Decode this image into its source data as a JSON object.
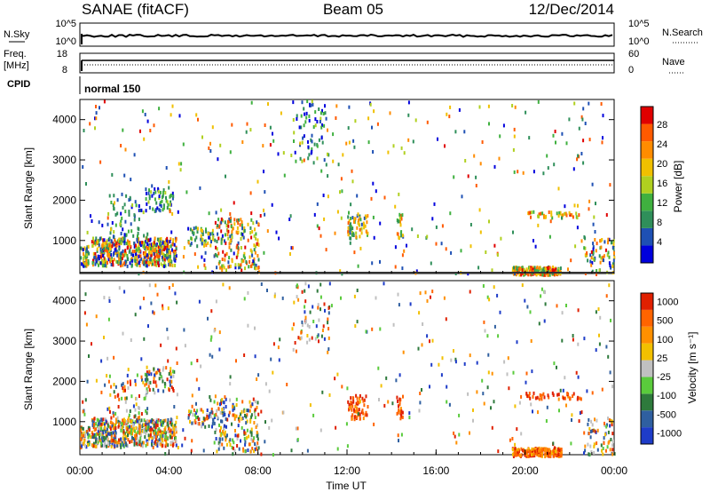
{
  "header": {
    "station": "SANAE (fitACF)",
    "beam": "Beam 05",
    "date": "12/Dec/2014"
  },
  "top_panels": {
    "nsky_label": "N.Sky",
    "nsky_ticks": [
      "10^5",
      "10^0"
    ],
    "nsearch_label": "N.Search",
    "nsearch_ticks": [
      "10^5",
      "10^0"
    ],
    "freq_label": "Freq.",
    "freq_unit": "[MHz]",
    "freq_ticks": [
      "18",
      "8"
    ],
    "nave_label": "Nave",
    "nave_ticks": [
      "60",
      "0"
    ],
    "cpid_label": "CPID",
    "cpid_value": "normal 150"
  },
  "colors": {
    "power_scale": [
      "#0000dd",
      "#1e50b4",
      "#2f8f5a",
      "#3fb03f",
      "#b0d020",
      "#f0c000",
      "#ff8c00",
      "#ff5a00",
      "#e00000"
    ],
    "velocity_scale": [
      "#1e3cc8",
      "#2f5fa0",
      "#2e7a3c",
      "#5acb3c",
      "#c0c0c0",
      "#f2c000",
      "#ff9000",
      "#ff6400",
      "#e02000"
    ]
  },
  "chart_data": [
    {
      "type": "heatmap",
      "name": "power",
      "ylabel": "Slant Range [km]",
      "xlabel": "",
      "colorbar_label": "Power [dB]",
      "colorbar_ticks": [
        "28",
        "24",
        "20",
        "16",
        "12",
        "8",
        "4"
      ],
      "colorbar_range": [
        0,
        32
      ],
      "ylim": [
        180,
        4500
      ],
      "yticks": [
        "4000",
        "3000",
        "2000",
        "1000"
      ],
      "xlim_hours": [
        0,
        24
      ],
      "clusters": [
        {
          "t0": 0.0,
          "t1": 0.4,
          "r0": 400,
          "r1": 900,
          "n": 40,
          "v0": 6,
          "v1": 24
        },
        {
          "t0": 0.5,
          "t1": 4.3,
          "r0": 400,
          "r1": 1100,
          "n": 520,
          "v0": 4,
          "v1": 30
        },
        {
          "t0": 1.2,
          "t1": 3.0,
          "r0": 1000,
          "r1": 2200,
          "n": 70,
          "v0": 4,
          "v1": 16
        },
        {
          "t0": 2.9,
          "t1": 4.2,
          "r0": 1750,
          "r1": 2400,
          "n": 60,
          "v0": 4,
          "v1": 18
        },
        {
          "t0": 4.8,
          "t1": 6.0,
          "r0": 900,
          "r1": 1350,
          "n": 50,
          "v0": 6,
          "v1": 22
        },
        {
          "t0": 6.0,
          "t1": 8.0,
          "r0": 300,
          "r1": 1600,
          "n": 170,
          "v0": 6,
          "v1": 30
        },
        {
          "t0": 12.0,
          "t1": 12.9,
          "r0": 1100,
          "r1": 1700,
          "n": 60,
          "v0": 8,
          "v1": 26
        },
        {
          "t0": 14.2,
          "t1": 14.5,
          "r0": 1100,
          "r1": 1700,
          "n": 20,
          "v0": 8,
          "v1": 26
        },
        {
          "t0": 19.4,
          "t1": 21.6,
          "r0": 180,
          "r1": 380,
          "n": 200,
          "v0": 10,
          "v1": 30
        },
        {
          "t0": 20.0,
          "t1": 22.5,
          "r0": 1600,
          "r1": 1750,
          "n": 40,
          "v0": 14,
          "v1": 28
        },
        {
          "t0": 22.6,
          "t1": 24.0,
          "r0": 200,
          "r1": 1100,
          "n": 60,
          "v0": 6,
          "v1": 26
        },
        {
          "t0": 9.5,
          "t1": 11.2,
          "r0": 3000,
          "r1": 4500,
          "n": 60,
          "v0": 4,
          "v1": 18
        },
        {
          "t0": 0.0,
          "t1": 24.0,
          "r0": 200,
          "r1": 4500,
          "n": 380,
          "v0": 4,
          "v1": 28
        }
      ]
    },
    {
      "type": "heatmap",
      "name": "velocity",
      "ylabel": "Slant Range [km]",
      "xlabel": "Time UT",
      "colorbar_label": "Velocity [m s⁻¹]",
      "colorbar_ticks": [
        "1000",
        "500",
        "100",
        "25",
        "-25",
        "-100",
        "-500",
        "-1000"
      ],
      "ylim": [
        180,
        4500
      ],
      "yticks": [
        "4000",
        "3000",
        "2000",
        "1000"
      ],
      "xticks": [
        "00:00",
        "04:00",
        "08:00",
        "12:00",
        "16:00",
        "20:00",
        "00:00"
      ],
      "xlim_hours": [
        0,
        24
      ],
      "clusters": [
        {
          "t0": 0.0,
          "t1": 0.4,
          "r0": 400,
          "r1": 900,
          "n": 40,
          "v0": 0,
          "v1": 8
        },
        {
          "t0": 0.5,
          "t1": 4.3,
          "r0": 400,
          "r1": 1100,
          "n": 520,
          "v0": 0,
          "v1": 8
        },
        {
          "t0": 1.2,
          "t1": 3.0,
          "r0": 1000,
          "r1": 2200,
          "n": 70,
          "v0": 0,
          "v1": 8
        },
        {
          "t0": 2.9,
          "t1": 4.2,
          "r0": 1750,
          "r1": 2400,
          "n": 60,
          "v0": 0,
          "v1": 8
        },
        {
          "t0": 4.8,
          "t1": 6.0,
          "r0": 900,
          "r1": 1350,
          "n": 50,
          "v0": 0,
          "v1": 8
        },
        {
          "t0": 6.0,
          "t1": 8.0,
          "r0": 300,
          "r1": 1600,
          "n": 170,
          "v0": 0,
          "v1": 8
        },
        {
          "t0": 12.0,
          "t1": 12.9,
          "r0": 1100,
          "r1": 1700,
          "n": 60,
          "v0": 6,
          "v1": 8
        },
        {
          "t0": 14.2,
          "t1": 14.5,
          "r0": 1100,
          "r1": 1700,
          "n": 20,
          "v0": 6,
          "v1": 8
        },
        {
          "t0": 19.4,
          "t1": 21.6,
          "r0": 180,
          "r1": 380,
          "n": 200,
          "v0": 5,
          "v1": 8
        },
        {
          "t0": 20.0,
          "t1": 22.5,
          "r0": 1600,
          "r1": 1750,
          "n": 40,
          "v0": 6,
          "v1": 8
        },
        {
          "t0": 22.6,
          "t1": 24.0,
          "r0": 200,
          "r1": 1100,
          "n": 60,
          "v0": 0,
          "v1": 8
        },
        {
          "t0": 9.5,
          "t1": 11.2,
          "r0": 3000,
          "r1": 4500,
          "n": 60,
          "v0": 0,
          "v1": 8
        },
        {
          "t0": 0.0,
          "t1": 24.0,
          "r0": 200,
          "r1": 4500,
          "n": 380,
          "v0": 0,
          "v1": 8
        }
      ]
    }
  ]
}
